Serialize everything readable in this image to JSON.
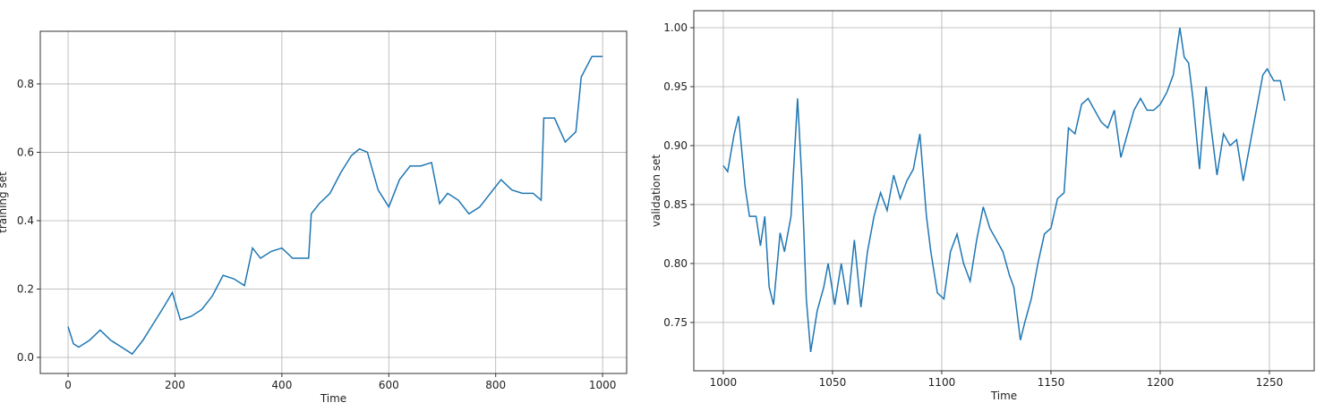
{
  "chart_data": [
    {
      "type": "line",
      "xlabel": "Time",
      "ylabel": "training set",
      "color": "#1f77b4",
      "grid": true,
      "xlim": [
        -52,
        1045
      ],
      "ylim": [
        -0.047,
        0.954
      ],
      "xticks": [
        0,
        200,
        400,
        600,
        800,
        1000
      ],
      "yticks": [
        {
          "value": 0,
          "label": "0.0"
        },
        0.2,
        0.4,
        0.6,
        0.8
      ],
      "x": [
        0,
        10,
        20,
        40,
        60,
        80,
        100,
        120,
        140,
        160,
        180,
        195,
        210,
        230,
        250,
        270,
        290,
        310,
        330,
        345,
        360,
        380,
        400,
        420,
        440,
        450,
        455,
        470,
        490,
        510,
        530,
        545,
        560,
        580,
        600,
        620,
        640,
        660,
        680,
        695,
        710,
        730,
        750,
        770,
        790,
        810,
        830,
        850,
        870,
        885,
        890,
        910,
        930,
        950,
        960,
        980,
        1000
      ],
      "values": [
        0.09,
        0.04,
        0.03,
        0.05,
        0.08,
        0.05,
        0.03,
        0.01,
        0.05,
        0.1,
        0.15,
        0.19,
        0.11,
        0.12,
        0.14,
        0.18,
        0.24,
        0.23,
        0.21,
        0.32,
        0.29,
        0.31,
        0.32,
        0.29,
        0.29,
        0.29,
        0.42,
        0.45,
        0.48,
        0.54,
        0.59,
        0.61,
        0.6,
        0.49,
        0.44,
        0.52,
        0.56,
        0.56,
        0.57,
        0.45,
        0.48,
        0.46,
        0.42,
        0.44,
        0.48,
        0.52,
        0.49,
        0.48,
        0.48,
        0.46,
        0.7,
        0.7,
        0.63,
        0.66,
        0.82,
        0.88,
        0.88
      ]
    },
    {
      "type": "line",
      "xlabel": "Time",
      "ylabel": "validation set",
      "color": "#1f77b4",
      "grid": true,
      "xlim": [
        986.5,
        1270.5
      ],
      "ylim": [
        0.709,
        1.0144
      ],
      "xticks": [
        1000,
        1050,
        1100,
        1150,
        1200,
        1250
      ],
      "yticks": [
        0.75,
        {
          "value": 0.8,
          "label": "0.80"
        },
        0.85,
        {
          "value": 0.9,
          "label": "0.90"
        },
        0.95,
        {
          "value": 1,
          "label": "1.00"
        }
      ],
      "x": [
        1000,
        1002,
        1005,
        1007,
        1010,
        1012,
        1015,
        1017,
        1019,
        1021,
        1023,
        1026,
        1028,
        1031,
        1034,
        1036,
        1038,
        1040,
        1043,
        1046,
        1048,
        1051,
        1054,
        1057,
        1060,
        1063,
        1066,
        1069,
        1072,
        1075,
        1078,
        1081,
        1084,
        1087,
        1090,
        1093,
        1095,
        1098,
        1101,
        1104,
        1107,
        1110,
        1113,
        1116,
        1119,
        1122,
        1125,
        1128,
        1131,
        1133,
        1136,
        1138,
        1141,
        1144,
        1147,
        1150,
        1153,
        1156,
        1158,
        1161,
        1164,
        1167,
        1170,
        1173,
        1176,
        1179,
        1182,
        1185,
        1188,
        1191,
        1194,
        1197,
        1200,
        1203,
        1206,
        1209,
        1211,
        1213,
        1215,
        1218,
        1221,
        1223,
        1226,
        1229,
        1232,
        1235,
        1238,
        1241,
        1244,
        1247,
        1249,
        1252,
        1255,
        1257
      ],
      "values": [
        0.883,
        0.878,
        0.91,
        0.925,
        0.865,
        0.84,
        0.84,
        0.815,
        0.84,
        0.78,
        0.765,
        0.826,
        0.81,
        0.84,
        0.94,
        0.87,
        0.77,
        0.725,
        0.76,
        0.78,
        0.8,
        0.765,
        0.8,
        0.765,
        0.82,
        0.763,
        0.81,
        0.84,
        0.86,
        0.845,
        0.875,
        0.855,
        0.87,
        0.88,
        0.91,
        0.84,
        0.81,
        0.775,
        0.77,
        0.81,
        0.825,
        0.8,
        0.785,
        0.82,
        0.848,
        0.83,
        0.82,
        0.81,
        0.79,
        0.78,
        0.735,
        0.75,
        0.77,
        0.8,
        0.825,
        0.83,
        0.855,
        0.86,
        0.915,
        0.91,
        0.935,
        0.94,
        0.93,
        0.92,
        0.915,
        0.93,
        0.89,
        0.91,
        0.93,
        0.94,
        0.93,
        0.93,
        0.935,
        0.945,
        0.96,
        1.0,
        0.975,
        0.97,
        0.94,
        0.88,
        0.95,
        0.92,
        0.875,
        0.91,
        0.9,
        0.905,
        0.87,
        0.9,
        0.93,
        0.96,
        0.965,
        0.955,
        0.955,
        0.938
      ]
    }
  ]
}
